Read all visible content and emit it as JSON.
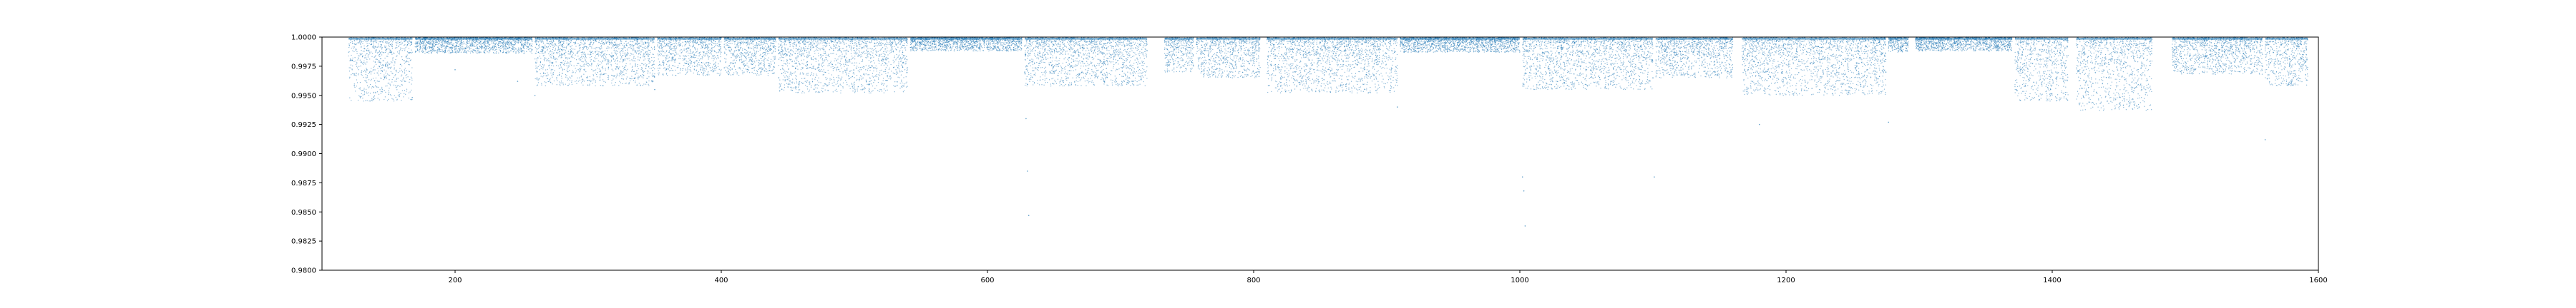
{
  "chart_data": {
    "type": "scatter",
    "title": "",
    "xlabel": "",
    "ylabel": "",
    "xlim": [
      100,
      1600
    ],
    "ylim": [
      0.98,
      1.0
    ],
    "x_ticks": [
      200,
      400,
      600,
      800,
      1000,
      1200,
      1400,
      1600
    ],
    "y_ticks": [
      0.98,
      0.9825,
      0.985,
      0.9875,
      0.99,
      0.9925,
      0.995,
      0.9975,
      1.0
    ],
    "x_tick_labels": [
      "200",
      "400",
      "600",
      "800",
      "1000",
      "1200",
      "1400",
      "1600"
    ],
    "y_tick_labels": [
      "0.9800",
      "0.9825",
      "0.9850",
      "0.9875",
      "0.9900",
      "0.9925",
      "0.9950",
      "0.9975",
      "1.0000"
    ],
    "grid": false,
    "legend": "none",
    "series_color": "#1f77b4",
    "segments": [
      {
        "x_start": 120,
        "x_end": 168,
        "y_low": 0.9945
      },
      {
        "x_start": 170,
        "x_end": 258,
        "y_low": 0.9986
      },
      {
        "x_start": 260,
        "x_end": 350,
        "y_low": 0.9958
      },
      {
        "x_start": 352,
        "x_end": 400,
        "y_low": 0.9967
      },
      {
        "x_start": 402,
        "x_end": 441,
        "y_low": 0.9967
      },
      {
        "x_start": 443,
        "x_end": 540,
        "y_low": 0.9952
      },
      {
        "x_start": 542,
        "x_end": 626,
        "y_low": 0.9988
      },
      {
        "x_start": 628,
        "x_end": 720,
        "y_low": 0.9958
      },
      {
        "x_start": 733,
        "x_end": 755,
        "y_low": 0.997
      },
      {
        "x_start": 757,
        "x_end": 805,
        "y_low": 0.9965
      },
      {
        "x_start": 810,
        "x_end": 908,
        "y_low": 0.9952
      },
      {
        "x_start": 910,
        "x_end": 1000,
        "y_low": 0.9987
      },
      {
        "x_start": 1002,
        "x_end": 1100,
        "y_low": 0.9955
      },
      {
        "x_start": 1102,
        "x_end": 1160,
        "y_low": 0.9965
      },
      {
        "x_start": 1167,
        "x_end": 1275,
        "y_low": 0.995
      },
      {
        "x_start": 1277,
        "x_end": 1292,
        "y_low": 0.9987
      },
      {
        "x_start": 1297,
        "x_end": 1370,
        "y_low": 0.9988
      },
      {
        "x_start": 1372,
        "x_end": 1412,
        "y_low": 0.9945
      },
      {
        "x_start": 1418,
        "x_end": 1475,
        "y_low": 0.9937
      },
      {
        "x_start": 1490,
        "x_end": 1558,
        "y_low": 0.9968
      },
      {
        "x_start": 1560,
        "x_end": 1592,
        "y_low": 0.9958
      }
    ],
    "spikes": [
      {
        "x": 200,
        "y": 0.9972
      },
      {
        "x": 247,
        "y": 0.9962
      },
      {
        "x": 260,
        "y": 0.995
      },
      {
        "x": 350,
        "y": 0.9955
      },
      {
        "x": 628,
        "y": 0.997
      },
      {
        "x": 629,
        "y": 0.993
      },
      {
        "x": 630,
        "y": 0.9885
      },
      {
        "x": 631,
        "y": 0.9847
      },
      {
        "x": 908,
        "y": 0.994
      },
      {
        "x": 1002,
        "y": 0.988
      },
      {
        "x": 1003,
        "y": 0.9868
      },
      {
        "x": 1004,
        "y": 0.9838
      },
      {
        "x": 1100,
        "y": 0.9965
      },
      {
        "x": 1101,
        "y": 0.988
      },
      {
        "x": 1180,
        "y": 0.9925
      },
      {
        "x": 1275,
        "y": 0.997
      },
      {
        "x": 1277,
        "y": 0.9927
      },
      {
        "x": 1558,
        "y": 0.9975
      },
      {
        "x": 1560,
        "y": 0.9912
      }
    ]
  }
}
